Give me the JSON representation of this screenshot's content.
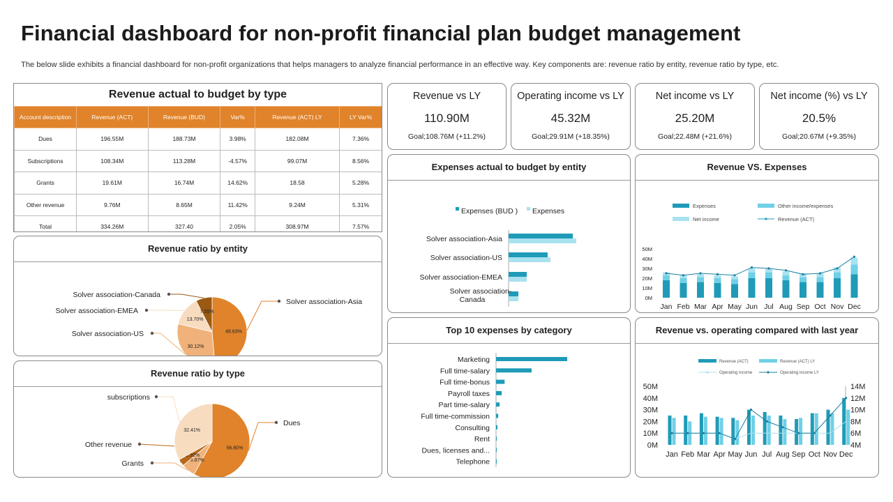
{
  "header": {
    "title": "Financial dashboard for non-profit financial plan budget management",
    "subtitle": "The below slide exhibits a financial dashboard for non-profit organizations that helps managers to analyze financial performance in an effective way. Key components are: revenue ratio by entity, revenue ratio by type, etc."
  },
  "budget_table": {
    "title": "Revenue actual to budget by type",
    "headers": [
      "Account description",
      "Revenue (ACT)",
      "Revenue (BUD)",
      "Var%",
      "Revenue (ACT) LY",
      "LY Var%"
    ],
    "rows": [
      [
        "Dues",
        "196.55M",
        "188.73M",
        "3.98%",
        "182.08M",
        "7.36%"
      ],
      [
        "Subscriptions",
        "108.34M",
        "113.28M",
        "-4.57%",
        "99.07M",
        "8.56%"
      ],
      [
        "Grants",
        "19.61M",
        "16.74M",
        "14.62%",
        "18.58",
        "5.28%"
      ],
      [
        "Other revenue",
        "9.76M",
        "8.65M",
        "11.42%",
        "9.24M",
        "5.31%"
      ],
      [
        "Total",
        "334.26M",
        "327.40",
        "2.05%",
        "308.97M",
        "7.57%"
      ]
    ]
  },
  "kpis": [
    {
      "title": "Revenue vs LY",
      "value": "110.90M",
      "goal": "Goal;108.76M (+11.2%)"
    },
    {
      "title": "Operating income vs LY",
      "value": "45.32M",
      "goal": "Goal;29.91M (+18.35%)"
    },
    {
      "title": "Net income vs LY",
      "value": "25.20M",
      "goal": "Goal;22.48M (+21.6%)"
    },
    {
      "title": "Net income (%) vs LY",
      "value": "20.5%",
      "goal": "Goal;20.67M (+9.35%)"
    }
  ],
  "colors": {
    "orange": "#e0832a",
    "orange_dark": "#b86a1c",
    "peach": "#f0b27a",
    "peach_light": "#f8dcc0",
    "brown": "#9a5a12",
    "teal_dark": "#1f9bb8",
    "teal_light": "#6fd0e6",
    "teal_pale": "#a9e2ef"
  },
  "chart_data": [
    {
      "id": "entity_pie",
      "type": "pie",
      "title": "Revenue ratio by entity",
      "slices": [
        {
          "label": "Solver association-Asia",
          "value": 48.63,
          "display": "48.63%"
        },
        {
          "label": "Solver association-US",
          "value": 30.12,
          "display": "30.12%"
        },
        {
          "label": "Solver association-EMEA",
          "value": 13.7,
          "display": "13.70%"
        },
        {
          "label": "Solver association-Canada",
          "value": 7.55,
          "display": "7.55%"
        }
      ]
    },
    {
      "id": "type_pie",
      "type": "pie",
      "title": "Revenue ratio by type",
      "slices": [
        {
          "label": "Dues",
          "value": 56.8,
          "display": "56.80%"
        },
        {
          "label": "Grants",
          "value": 5.87,
          "display": "5.87%"
        },
        {
          "label": "Other revenue",
          "value": 2.92,
          "display": "2.92%"
        },
        {
          "label": "subscriptions",
          "value": 32.41,
          "display": "32.41%"
        }
      ]
    },
    {
      "id": "expenses_entity",
      "type": "bar",
      "orientation": "horizontal",
      "title": "Expenses actual to budget by entity",
      "legend": [
        "Expenses (BUD )",
        "Expenses"
      ],
      "categories": [
        "Solver association-Asia",
        "Solver association-US",
        "Solver association-EMEA",
        "Solver association-Canada"
      ],
      "series": [
        {
          "name": "Expenses (BUD )",
          "values": [
            92,
            56,
            26,
            14
          ]
        },
        {
          "name": "Expenses",
          "values": [
            97,
            60,
            26,
            14
          ]
        }
      ]
    },
    {
      "id": "rev_vs_exp",
      "type": "bar",
      "title": "Revenue VS. Expenses",
      "legend": [
        "Expenses",
        "Other income/expenses",
        "Net income",
        "Revenue (ACT)"
      ],
      "categories": [
        "Jan",
        "Feb",
        "Mar",
        "Apr",
        "May",
        "Jun",
        "Jul",
        "Aug",
        "Sep",
        "Oct",
        "Nov",
        "Dec"
      ],
      "y_ticks": [
        "0M",
        "10M",
        "20M",
        "30M",
        "40M",
        "50M"
      ],
      "ylim": [
        0,
        50
      ],
      "series": [
        {
          "name": "Expenses",
          "values": [
            18,
            15,
            16,
            15,
            14,
            20,
            20,
            18,
            16,
            16,
            20,
            24
          ]
        },
        {
          "name": "Other income/expenses",
          "values": [
            5,
            5,
            5,
            5,
            5,
            6,
            6,
            5,
            5,
            5,
            6,
            10
          ]
        },
        {
          "name": "Net income",
          "values": [
            3,
            3,
            3,
            3,
            3,
            4,
            4,
            4,
            4,
            4,
            5,
            7
          ]
        },
        {
          "name": "Revenue (ACT)",
          "values": [
            25,
            23,
            25,
            24,
            23,
            31,
            30,
            28,
            24,
            25,
            30,
            42
          ]
        }
      ]
    },
    {
      "id": "top10",
      "type": "bar",
      "orientation": "horizontal",
      "title": "Top 10 expenses by category",
      "categories": [
        "Marketing",
        "Full time-salary",
        "Full time-bonus",
        "Payroll taxes",
        "Part time-salary",
        "Full time-commission",
        "Consulting",
        "Rent",
        "Dues, licenses and...",
        "Telephone"
      ],
      "values": [
        100,
        50,
        12,
        8,
        5,
        3,
        2,
        1,
        0.5,
        0.5
      ]
    },
    {
      "id": "rev_vs_op",
      "type": "bar",
      "title": "Revenue vs. operating compared with last year",
      "legend": [
        "Revenue (ACT)",
        "Revenue (ACT) LY",
        "Operating income",
        "Operating income LY"
      ],
      "categories": [
        "Jan",
        "Feb",
        "Mar",
        "Apr",
        "May",
        "Jun",
        "Jul",
        "Aug",
        "Sep",
        "Oct",
        "Nov",
        "Dec"
      ],
      "y_left_ticks": [
        "0M",
        "10M",
        "20M",
        "30M",
        "40M",
        "50M"
      ],
      "y_right_ticks": [
        "4M",
        "6M",
        "8M",
        "10M",
        "12M",
        "14M"
      ],
      "ylim_left": [
        0,
        50
      ],
      "ylim_right": [
        4,
        14
      ],
      "series": [
        {
          "name": "Revenue (ACT)",
          "axis": "left",
          "values": [
            25,
            25,
            27,
            24,
            23,
            30,
            28,
            25,
            22,
            27,
            30,
            40
          ]
        },
        {
          "name": "Revenue (ACT) LY",
          "axis": "left",
          "values": [
            23,
            20,
            24,
            23,
            21,
            25,
            25,
            22,
            23,
            27,
            27,
            30
          ]
        },
        {
          "name": "Operating income",
          "axis": "right",
          "values": [
            6,
            6,
            6,
            6,
            5,
            10,
            8,
            7,
            6,
            6,
            9,
            12
          ]
        },
        {
          "name": "Operating income LY",
          "axis": "right",
          "values": [
            6,
            6,
            6,
            6,
            5,
            6,
            6,
            6,
            6,
            6,
            6,
            8
          ]
        }
      ]
    }
  ]
}
